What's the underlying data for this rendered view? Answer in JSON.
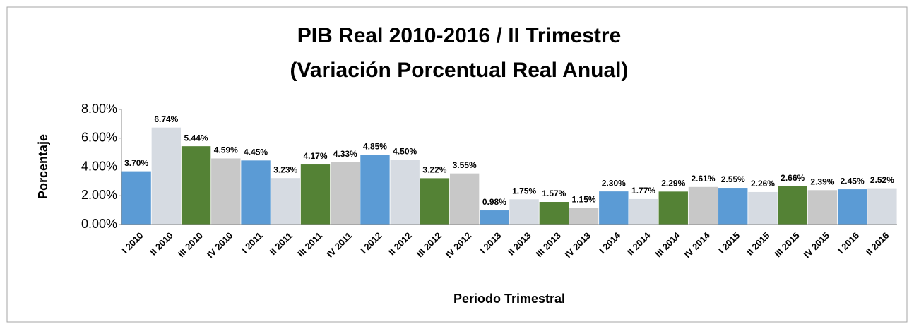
{
  "chart_data": {
    "type": "bar",
    "title": [
      "PIB Real 2010-2016 / II Trimestre",
      "(Variación Porcentual Real Anual)"
    ],
    "y_label": "Porcentaje",
    "x_label": "Periodo Trimestral",
    "categories": [
      "I 2010",
      "II 2010",
      "III 2010",
      "IV 2010",
      "I 2011",
      "II 2011",
      "III 2011",
      "IV 2011",
      "I 2012",
      "II 2012",
      "III 2012",
      "IV 2012",
      "I 2013",
      "II 2013",
      "III 2013",
      "IV 2013",
      "I 2014",
      "II 2014",
      "III 2014",
      "IV 2014",
      "I 2015",
      "II 2015",
      "III 2015",
      "IV 2015",
      "I 2016",
      "II 2016"
    ],
    "values": [
      3.7,
      6.74,
      5.44,
      4.59,
      4.45,
      3.23,
      4.17,
      4.33,
      4.85,
      4.5,
      3.22,
      3.55,
      0.98,
      1.75,
      1.57,
      1.15,
      2.3,
      1.77,
      2.29,
      2.61,
      2.55,
      2.26,
      2.66,
      2.39,
      2.45,
      2.52
    ],
    "value_labels": [
      "3.70%",
      "6.74%",
      "5.44%",
      "4.59%",
      "4.45%",
      "3.23%",
      "4.17%",
      "4.33%",
      "4.85%",
      "4.50%",
      "3.22%",
      "3.55%",
      "0.98%",
      "1.75%",
      "1.57%",
      "1.15%",
      "2.30%",
      "1.77%",
      "2.29%",
      "2.61%",
      "2.55%",
      "2.26%",
      "2.66%",
      "2.39%",
      "2.45%",
      "2.52%"
    ],
    "colors": [
      "#5b9bd5",
      "#d6dbe2",
      "#548235",
      "#c8c8c8",
      "#5b9bd5",
      "#d6dbe2",
      "#548235",
      "#c8c8c8",
      "#5b9bd5",
      "#d6dbe2",
      "#548235",
      "#c8c8c8",
      "#5b9bd5",
      "#d6dbe2",
      "#548235",
      "#c8c8c8",
      "#5b9bd5",
      "#d6dbe2",
      "#548235",
      "#c8c8c8",
      "#5b9bd5",
      "#d6dbe2",
      "#548235",
      "#c8c8c8",
      "#5b9bd5",
      "#d6dbe2"
    ],
    "ylim": [
      0,
      8
    ],
    "yticks": [
      {
        "value": 0,
        "label": "0.00%"
      },
      {
        "value": 2,
        "label": "2.00%"
      },
      {
        "value": 4,
        "label": "4.00%"
      },
      {
        "value": 6,
        "label": "6.00%"
      },
      {
        "value": 8,
        "label": "8.00%"
      }
    ]
  }
}
